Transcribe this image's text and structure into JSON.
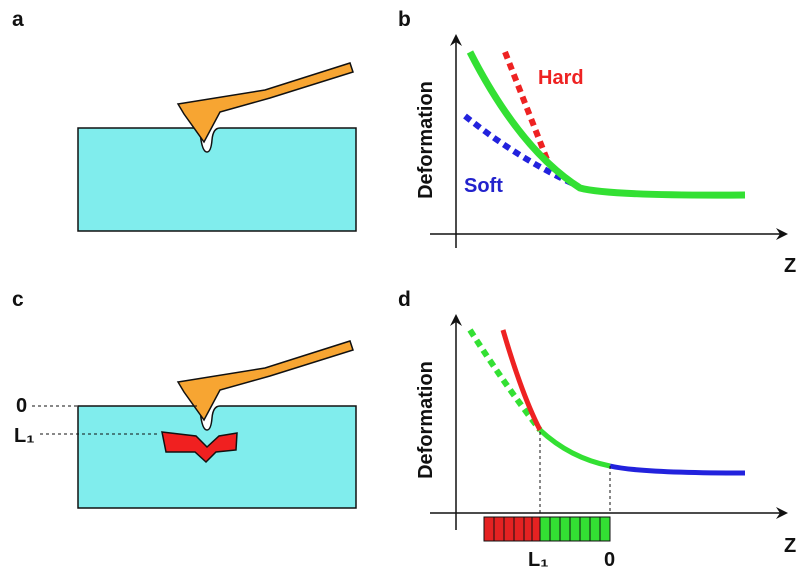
{
  "panel_a": {
    "label": "a"
  },
  "panel_b": {
    "label": "b",
    "y_axis": "Deformation",
    "x_axis": "Z",
    "hard": "Hard",
    "soft": "Soft"
  },
  "panel_c": {
    "label": "c",
    "surface": "0",
    "depth": "L₁"
  },
  "panel_d": {
    "label": "d",
    "y_axis": "Deformation",
    "x_axis": "Z",
    "depth": "L₁",
    "surface": "0"
  }
}
